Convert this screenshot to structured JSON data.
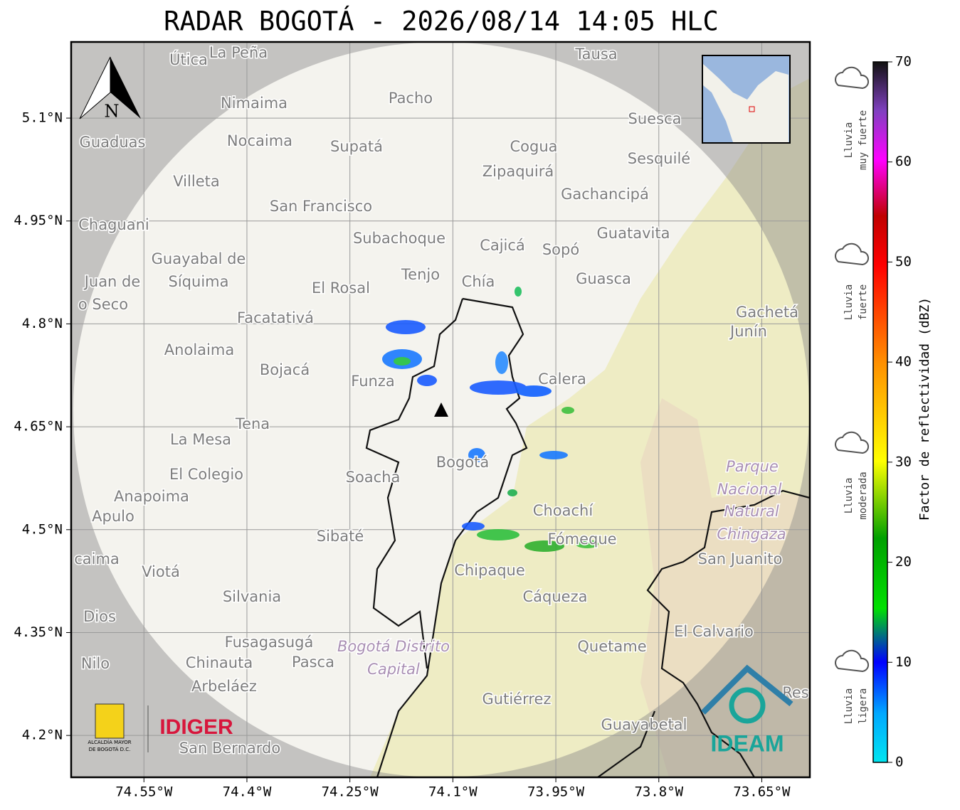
{
  "title": "RADAR BOGOTÁ - 2026/08/14 14:05 HLC",
  "map": {
    "xlim": [
      -74.656,
      -73.58
    ],
    "ylim": [
      4.139,
      5.211
    ],
    "xticks": [
      {
        "value": -74.55,
        "label": "74.55°W"
      },
      {
        "value": -74.4,
        "label": "74.4°W"
      },
      {
        "value": -74.25,
        "label": "74.25°W"
      },
      {
        "value": -74.1,
        "label": "74.1°W"
      },
      {
        "value": -73.95,
        "label": "73.95°W"
      },
      {
        "value": -73.8,
        "label": "73.8°W"
      },
      {
        "value": -73.65,
        "label": "73.65°W"
      }
    ],
    "yticks": [
      {
        "value": 5.1,
        "label": "5.1°N"
      },
      {
        "value": 4.95,
        "label": "4.95°N"
      },
      {
        "value": 4.8,
        "label": "4.8°N"
      },
      {
        "value": 4.65,
        "label": "4.65°N"
      },
      {
        "value": 4.5,
        "label": "4.5°N"
      },
      {
        "value": 4.35,
        "label": "4.35°N"
      },
      {
        "value": 4.2,
        "label": "4.2°N"
      }
    ],
    "grid": true,
    "north": "N",
    "places": [
      "Útica",
      "La Peña",
      "Tausa",
      "Pacho",
      "Nimaima",
      "Suesca",
      "Guaduas",
      "Nocaima",
      "Supatá",
      "Cogua",
      "Sesquilé",
      "Zipaquirá",
      "Villeta",
      "Gachancipá",
      "San Francisco",
      "Chaguani",
      "Guatavita",
      "Subachoque",
      "Cajicá",
      "Sopó",
      "Guayabal de",
      "Síquima",
      "Juan de",
      "o Seco",
      "Tenjo",
      "Chía",
      "Guasca",
      "El Rosal",
      "Gachetá",
      "Junín",
      "Facatativá",
      "Anolaima",
      "Bojacá",
      "Funza",
      "Calera",
      "Tena",
      "La Mesa",
      "El Colegio",
      "Bogotá",
      "Soacha",
      "Anapoima",
      "Apulo",
      "Choachí",
      "Sibaté",
      "Fómeque",
      "San Juanito",
      "caima",
      "Viotá",
      "Chipaque",
      "Silvania",
      "Cáqueza",
      "Dios",
      "El Calvario",
      "Fusagasugá",
      "Quetame",
      "Nilo",
      "Chinauta",
      "Pasca",
      "Arbeláez",
      "Gutiérrez",
      "Guayabetal",
      "San Bernardo",
      "Res"
    ],
    "park_labels": [
      "Parque",
      "Nacional",
      "Natural",
      "Chingaza",
      "Bogotá Distrito",
      "Capital"
    ]
  },
  "colorbar": {
    "label": "Factor de reflectividad (dBZ)",
    "lim": [
      0,
      70
    ],
    "ticks": [
      0,
      10,
      20,
      30,
      40,
      50,
      60,
      70
    ]
  },
  "legend": [
    {
      "lines": [
        "Lluvia",
        "muy fuerte"
      ]
    },
    {
      "lines": [
        "Lluvia",
        "fuerte"
      ]
    },
    {
      "lines": [
        "Lluvia",
        "moderada"
      ]
    },
    {
      "lines": [
        "Lluvia",
        "ligera"
      ]
    }
  ],
  "logos": {
    "alcaldia": [
      "ALCALDÍA MAYOR",
      "DE BOGOTÁ D.C."
    ],
    "idiger": "IDIGER",
    "ideam": "IDEAM"
  }
}
